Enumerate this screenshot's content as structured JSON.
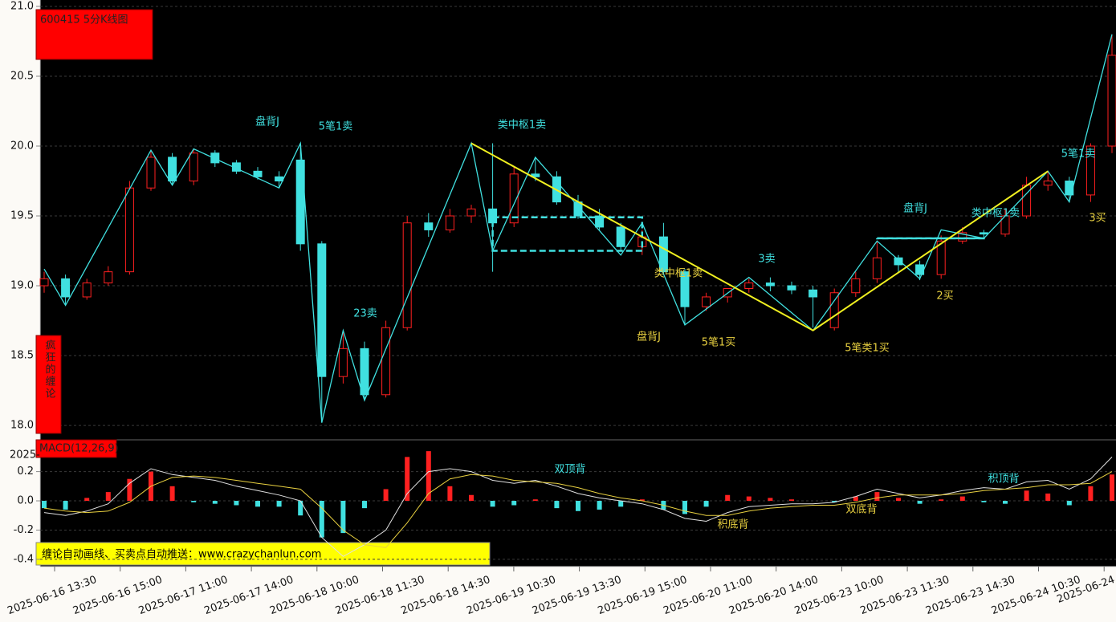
{
  "chart_data": [
    {
      "type": "candlestick",
      "title": "600415 5分K线图",
      "badge": "疯狂的缠论",
      "banner": "缠论自动画线、买卖点自动推送：www.crazychanlun.com",
      "up_color": "#ff2020",
      "down_color": "#40e0e0",
      "open": [
        19.0,
        19.05,
        18.92,
        19.02,
        19.1,
        19.7,
        19.92,
        19.75,
        19.95,
        19.88,
        19.82,
        19.78,
        19.9,
        19.3,
        18.35,
        18.55,
        18.22,
        18.7,
        19.45,
        19.4,
        19.5,
        19.55,
        19.45,
        19.8,
        19.78,
        19.6,
        19.5,
        19.42,
        19.28,
        19.35,
        19.1,
        18.85,
        18.92,
        18.98,
        19.02,
        19.0,
        18.97,
        18.7,
        18.95,
        19.05,
        19.2,
        19.15,
        19.08,
        19.32,
        19.38,
        19.37,
        19.5,
        19.72,
        19.75,
        19.65,
        20.0
      ],
      "high": [
        19.1,
        19.08,
        19.05,
        19.14,
        19.75,
        19.97,
        19.95,
        19.98,
        19.97,
        19.9,
        19.85,
        19.82,
        20.02,
        19.32,
        18.68,
        18.6,
        18.75,
        19.5,
        19.52,
        19.55,
        19.58,
        20.02,
        19.85,
        19.92,
        19.82,
        19.65,
        19.55,
        19.45,
        19.4,
        19.45,
        19.12,
        18.95,
        18.98,
        19.05,
        19.06,
        19.03,
        19.0,
        18.98,
        19.1,
        19.32,
        19.22,
        19.18,
        19.36,
        19.42,
        19.4,
        19.55,
        19.78,
        19.82,
        19.78,
        20.02,
        20.8
      ],
      "low": [
        18.95,
        18.86,
        18.9,
        19.0,
        19.08,
        19.68,
        19.72,
        19.72,
        19.85,
        19.8,
        19.76,
        19.7,
        19.25,
        18.02,
        18.3,
        18.18,
        18.2,
        18.68,
        19.35,
        19.38,
        19.45,
        19.1,
        19.42,
        19.75,
        19.58,
        19.48,
        19.4,
        19.25,
        19.22,
        19.08,
        18.72,
        18.82,
        18.88,
        18.95,
        18.96,
        18.94,
        18.7,
        18.68,
        18.92,
        19.02,
        19.1,
        19.04,
        19.05,
        19.3,
        19.34,
        19.35,
        19.48,
        19.68,
        19.6,
        19.6,
        19.95
      ],
      "close": [
        19.05,
        18.92,
        19.02,
        19.1,
        19.7,
        19.92,
        19.75,
        19.95,
        19.88,
        19.82,
        19.78,
        19.75,
        19.3,
        18.35,
        18.55,
        18.22,
        18.7,
        19.45,
        19.4,
        19.5,
        19.55,
        19.45,
        19.8,
        19.78,
        19.6,
        19.5,
        19.42,
        19.28,
        19.35,
        19.1,
        18.85,
        18.92,
        18.98,
        19.02,
        19.0,
        18.97,
        18.92,
        18.95,
        19.05,
        19.2,
        19.15,
        19.08,
        19.32,
        19.38,
        19.37,
        19.5,
        19.72,
        19.75,
        19.65,
        20.0,
        20.65
      ],
      "strokes": {
        "color": "#40e0e0",
        "x": [
          0,
          1,
          5,
          6,
          7,
          11,
          12,
          13,
          14,
          15,
          20,
          21,
          23,
          27,
          28,
          30,
          33,
          36,
          39,
          41,
          42,
          44,
          47,
          48,
          50
        ],
        "values": [
          19.12,
          18.86,
          19.97,
          19.72,
          19.98,
          19.7,
          20.02,
          18.02,
          18.68,
          18.18,
          20.02,
          19.25,
          19.92,
          19.22,
          19.45,
          18.72,
          19.06,
          18.68,
          19.32,
          19.05,
          19.4,
          19.34,
          19.82,
          19.6,
          20.8
        ]
      },
      "segments": {
        "color": "#f0f020",
        "x": [
          20,
          36,
          47
        ],
        "values": [
          20.02,
          18.68,
          19.82
        ]
      },
      "boxes": [
        {
          "from": 21,
          "to": 28,
          "low": 19.25,
          "high": 19.49
        },
        {
          "from": 39,
          "to": 44,
          "low": 19.34,
          "high": 19.34
        }
      ],
      "annotations": [
        {
          "text": "盘背J",
          "color": "#40e0e0"
        },
        {
          "text": "5笔1卖",
          "color": "#40e0e0"
        },
        {
          "text": "23卖",
          "color": "#40e0e0"
        },
        {
          "text": "类中枢1卖",
          "color": "#40e0e0"
        },
        {
          "text": "类中枢1卖",
          "color": "#e8d040"
        },
        {
          "text": "盘背J",
          "color": "#e8d040"
        },
        {
          "text": "5笔1买",
          "color": "#e8d040"
        },
        {
          "text": "3卖",
          "color": "#40e0e0"
        },
        {
          "text": "5笔类1买",
          "color": "#e8d040"
        },
        {
          "text": "盘背J",
          "color": "#40e0e0"
        },
        {
          "text": "类中枢1卖",
          "color": "#40e0e0"
        },
        {
          "text": "2买",
          "color": "#e8d040"
        },
        {
          "text": "5笔1卖",
          "color": "#40e0e0"
        },
        {
          "text": "3买",
          "color": "#e8d040"
        }
      ],
      "ylim": [
        17.92,
        21.04
      ],
      "yticks": [
        {
          "value": 18.0,
          "label": "18.0"
        },
        18.5,
        {
          "value": 19.0,
          "label": "19.0"
        },
        19.5,
        {
          "value": 20.0,
          "label": "20.0"
        },
        20.5,
        {
          "value": 21.0,
          "label": "21.0"
        }
      ],
      "grid": true,
      "xtick_labels": [
        "2025-06-16 13:30",
        "2025-06-16 15:00",
        "2025-06-17 11:00",
        "2025-06-17 14:00",
        "2025-06-18 10:00",
        "2025-06-18 11:30",
        "2025-06-18 14:30",
        "2025-06-19 10:30",
        "2025-06-19 13:30",
        "2025-06-19 15:00",
        "2025-06-20 11:00",
        "2025-06-20 14:00",
        "2025-06-23 10:00",
        "2025-06-23 11:30",
        "2025-06-23 14:30",
        "2025-06-24 10:30",
        "2025-06-24"
      ]
    },
    {
      "type": "macd",
      "title": "MACD(12,26,9)",
      "corner_label": "2025-",
      "histogram": {
        "up_color": "#ff2020",
        "down_color": "#40e0e0",
        "values": [
          -0.05,
          -0.06,
          0.02,
          0.06,
          0.15,
          0.2,
          0.1,
          -0.01,
          -0.02,
          -0.03,
          -0.04,
          -0.04,
          -0.1,
          -0.25,
          -0.22,
          -0.05,
          0.08,
          0.3,
          0.34,
          0.1,
          0.04,
          -0.04,
          -0.03,
          0.01,
          -0.05,
          -0.07,
          -0.06,
          -0.04,
          0.01,
          -0.06,
          -0.09,
          -0.04,
          0.04,
          0.03,
          0.02,
          0.01,
          0.0,
          -0.01,
          0.03,
          0.06,
          0.02,
          -0.02,
          0.01,
          0.03,
          -0.01,
          -0.02,
          0.07,
          0.05,
          -0.03,
          0.1,
          0.18
        ]
      },
      "series": [
        {
          "color": "#e0e0e0",
          "values": [
            -0.08,
            -0.1,
            -0.07,
            -0.02,
            0.12,
            0.22,
            0.18,
            0.16,
            0.14,
            0.1,
            0.07,
            0.04,
            0.0,
            -0.25,
            -0.38,
            -0.3,
            -0.2,
            0.05,
            0.2,
            0.22,
            0.2,
            0.14,
            0.12,
            0.14,
            0.1,
            0.05,
            0.02,
            0.0,
            -0.02,
            -0.06,
            -0.12,
            -0.14,
            -0.08,
            -0.04,
            -0.03,
            -0.02,
            -0.02,
            -0.01,
            0.03,
            0.08,
            0.05,
            0.02,
            0.04,
            0.07,
            0.09,
            0.08,
            0.13,
            0.14,
            0.08,
            0.15,
            0.3
          ]
        },
        {
          "color": "#e8d040",
          "values": [
            -0.05,
            -0.07,
            -0.08,
            -0.07,
            -0.01,
            0.1,
            0.16,
            0.17,
            0.16,
            0.14,
            0.12,
            0.1,
            0.08,
            -0.05,
            -0.2,
            -0.3,
            -0.32,
            -0.15,
            0.05,
            0.15,
            0.18,
            0.17,
            0.14,
            0.13,
            0.12,
            0.09,
            0.05,
            0.02,
            0.0,
            -0.03,
            -0.07,
            -0.1,
            -0.1,
            -0.07,
            -0.05,
            -0.04,
            -0.03,
            -0.03,
            -0.01,
            0.02,
            0.04,
            0.04,
            0.04,
            0.05,
            0.07,
            0.08,
            0.09,
            0.11,
            0.11,
            0.12,
            0.2
          ]
        }
      ],
      "annotations": [
        {
          "text": "双顶背",
          "color": "#40e0e0"
        },
        {
          "text": "积底背",
          "color": "#e8d040"
        },
        {
          "text": "双底背",
          "color": "#e8d040"
        },
        {
          "text": "积顶背",
          "color": "#40e0e0"
        }
      ],
      "ylim": [
        -0.45,
        0.39
      ],
      "yticks": [
        -0.4,
        -0.2,
        {
          "value": 0.0,
          "label": "0.0"
        },
        0.2
      ],
      "grid": true
    }
  ]
}
